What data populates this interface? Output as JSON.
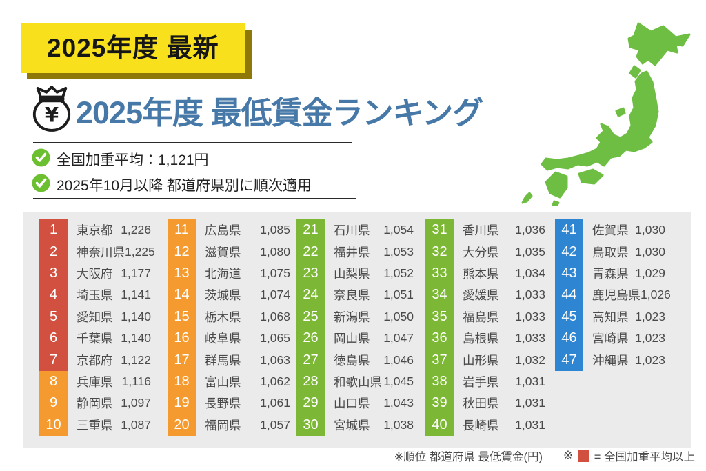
{
  "badge": {
    "label": "2025年度 最新"
  },
  "title": {
    "text": "2025年度 最低賃金ランキング",
    "icon": "money-bag"
  },
  "checklist": {
    "items": [
      {
        "text": "全国加重平均：1,121円"
      },
      {
        "text": "2025年10月以降 都道府県別に順次適用"
      }
    ]
  },
  "footnotes": {
    "left": "※順位 都道府県 最低賃金(円)",
    "right_prefix": "※",
    "right_label": "=  全国加重平均以上"
  },
  "colors": {
    "badge_yellow": "#f8e11c",
    "badge_shadow": "#8d7808",
    "title_blue": "#4678a8",
    "check_green": "#6cbf2f",
    "panel_gray": "#ebebeb",
    "tier_red": "#d2503f",
    "tier_orange": "#f59a2e",
    "tier_green": "#7cb836",
    "tier_blue": "#2e86d2",
    "map_green": "#6fbe44"
  },
  "chart_data": {
    "type": "table",
    "title": "2025年度 最低賃金ランキング",
    "columns": [
      "順位",
      "都道府県",
      "最低賃金(円)"
    ],
    "national_weighted_average": "1,121",
    "tier_legend": {
      "red": "全国加重平均以上 (1-7位)",
      "orange": "8-20位",
      "green": "21-40位",
      "blue": "41-47位"
    },
    "rows": [
      [
        "1",
        "東京都",
        "1,226",
        "red"
      ],
      [
        "2",
        "神奈川県",
        "1,225",
        "red"
      ],
      [
        "3",
        "大阪府",
        "1,177",
        "red"
      ],
      [
        "4",
        "埼玉県",
        "1,141",
        "red"
      ],
      [
        "5",
        "愛知県",
        "1,140",
        "red"
      ],
      [
        "6",
        "千葉県",
        "1,140",
        "red"
      ],
      [
        "7",
        "京都府",
        "1,122",
        "red"
      ],
      [
        "8",
        "兵庫県",
        "1,116",
        "orange"
      ],
      [
        "9",
        "静岡県",
        "1,097",
        "orange"
      ],
      [
        "10",
        "三重県",
        "1,087",
        "orange"
      ],
      [
        "11",
        "広島県",
        "1,085",
        "orange"
      ],
      [
        "12",
        "滋賀県",
        "1,080",
        "orange"
      ],
      [
        "13",
        "北海道",
        "1,075",
        "orange"
      ],
      [
        "14",
        "茨城県",
        "1,074",
        "orange"
      ],
      [
        "15",
        "栃木県",
        "1,068",
        "orange"
      ],
      [
        "16",
        "岐阜県",
        "1,065",
        "orange"
      ],
      [
        "17",
        "群馬県",
        "1,063",
        "orange"
      ],
      [
        "18",
        "富山県",
        "1,062",
        "orange"
      ],
      [
        "19",
        "長野県",
        "1,061",
        "orange"
      ],
      [
        "20",
        "福岡県",
        "1,057",
        "orange"
      ],
      [
        "21",
        "石川県",
        "1,054",
        "green"
      ],
      [
        "22",
        "福井県",
        "1,053",
        "green"
      ],
      [
        "23",
        "山梨県",
        "1,052",
        "green"
      ],
      [
        "24",
        "奈良県",
        "1,051",
        "green"
      ],
      [
        "25",
        "新潟県",
        "1,050",
        "green"
      ],
      [
        "26",
        "岡山県",
        "1,047",
        "green"
      ],
      [
        "27",
        "徳島県",
        "1,046",
        "green"
      ],
      [
        "28",
        "和歌山県",
        "1,045",
        "green"
      ],
      [
        "29",
        "山口県",
        "1,043",
        "green"
      ],
      [
        "30",
        "宮城県",
        "1,038",
        "green"
      ],
      [
        "31",
        "香川県",
        "1,036",
        "green"
      ],
      [
        "32",
        "大分県",
        "1,035",
        "green"
      ],
      [
        "33",
        "熊本県",
        "1,034",
        "green"
      ],
      [
        "34",
        "愛媛県",
        "1,033",
        "green"
      ],
      [
        "35",
        "福島県",
        "1,033",
        "green"
      ],
      [
        "36",
        "島根県",
        "1,033",
        "green"
      ],
      [
        "37",
        "山形県",
        "1,032",
        "green"
      ],
      [
        "38",
        "岩手県",
        "1,031",
        "green"
      ],
      [
        "39",
        "秋田県",
        "1,031",
        "green"
      ],
      [
        "40",
        "長崎県",
        "1,031",
        "green"
      ],
      [
        "41",
        "佐賀県",
        "1,030",
        "blue"
      ],
      [
        "42",
        "鳥取県",
        "1,030",
        "blue"
      ],
      [
        "43",
        "青森県",
        "1,029",
        "blue"
      ],
      [
        "44",
        "鹿児島県",
        "1,026",
        "blue"
      ],
      [
        "45",
        "高知県",
        "1,023",
        "blue"
      ],
      [
        "46",
        "宮崎県",
        "1,023",
        "blue"
      ],
      [
        "47",
        "沖縄県",
        "1,023",
        "blue"
      ]
    ]
  }
}
